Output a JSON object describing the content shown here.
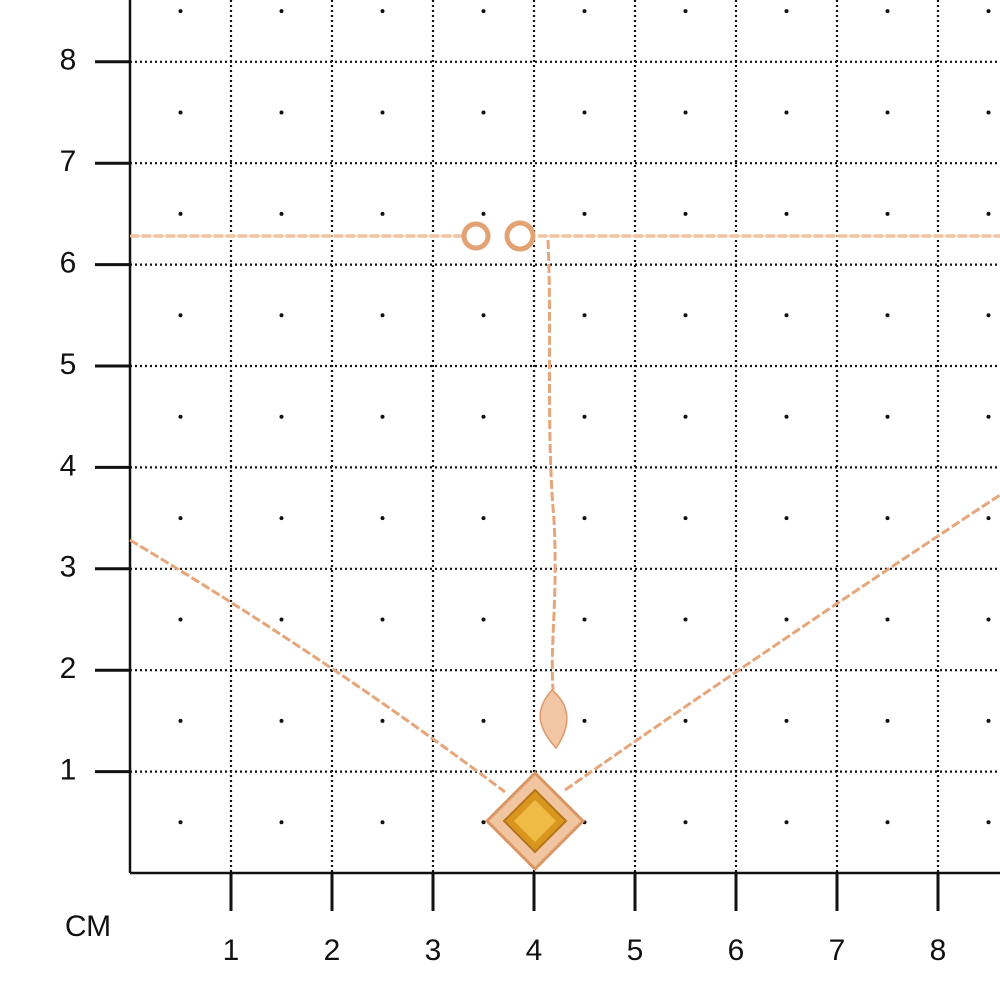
{
  "axis": {
    "unit": "СМ",
    "x_ticks": [
      1,
      2,
      3,
      4,
      5,
      6,
      7,
      8
    ],
    "y_ticks": [
      1,
      2,
      3,
      4,
      5,
      6,
      7,
      8
    ]
  }
}
